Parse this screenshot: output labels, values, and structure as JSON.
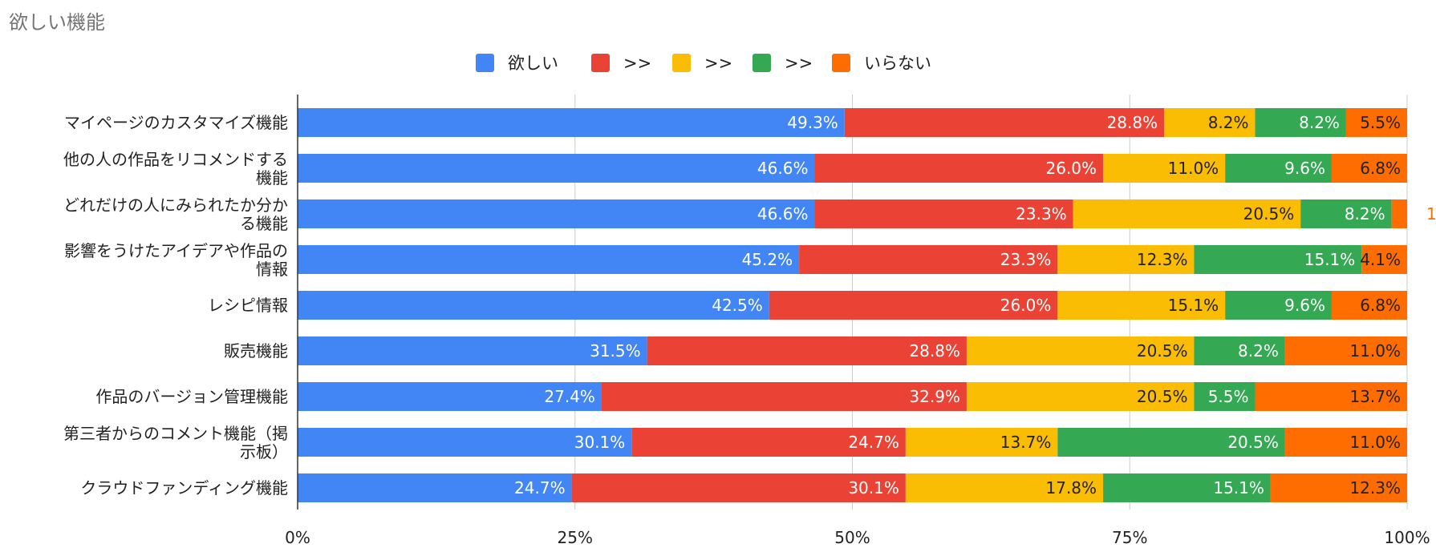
{
  "chart_data": {
    "type": "bar",
    "orientation": "horizontal",
    "stacked": "percent",
    "title": "欲しい機能",
    "xlabel": "",
    "ylabel": "",
    "xlim": [
      0,
      100
    ],
    "x_ticks": [
      "0%",
      "25%",
      "50%",
      "75%",
      "100%"
    ],
    "grid": true,
    "legend_position": "top",
    "categories": [
      [
        "マイページのカスタマイズ機能"
      ],
      [
        "他の人の作品をリコメンドする",
        "機能"
      ],
      [
        "どれだけの人にみられたか分か",
        "る機能"
      ],
      [
        "影響をうけたアイデアや作品の",
        "情報"
      ],
      [
        "レシピ情報"
      ],
      [
        "販売機能"
      ],
      [
        "作品のバージョン管理機能"
      ],
      [
        "第三者からのコメント機能（掲",
        "示板）"
      ],
      [
        "クラウドファンディング機能"
      ]
    ],
    "series": [
      {
        "name": "欲しい",
        "color": "#4285F4",
        "label_color": "#ffffff",
        "values": [
          49.3,
          46.6,
          46.6,
          45.2,
          42.5,
          31.5,
          27.4,
          30.1,
          24.7
        ],
        "labels": [
          "49.3%",
          "46.6%",
          "46.6%",
          "45.2%",
          "42.5%",
          "31.5%",
          "27.4%",
          "30.1%",
          "24.7%"
        ]
      },
      {
        "name": ">>",
        "color": "#EA4335",
        "label_color": "#ffffff",
        "values": [
          28.8,
          26.0,
          23.3,
          23.3,
          26.0,
          28.8,
          32.9,
          24.7,
          30.1
        ],
        "labels": [
          "28.8%",
          "26.0%",
          "23.3%",
          "23.3%",
          "26.0%",
          "28.8%",
          "32.9%",
          "24.7%",
          "30.1%"
        ]
      },
      {
        "name": ">>",
        "color": "#FBBC04",
        "label_color": "#222222",
        "values": [
          8.2,
          11.0,
          20.5,
          12.3,
          15.1,
          20.5,
          20.5,
          13.7,
          17.8
        ],
        "labels": [
          "8.2%",
          "11.0%",
          "20.5%",
          "12.3%",
          "15.1%",
          "20.5%",
          "20.5%",
          "13.7%",
          "17.8%"
        ]
      },
      {
        "name": ">>",
        "color": "#34A853",
        "label_color": "#ffffff",
        "values": [
          8.2,
          9.6,
          8.2,
          15.1,
          9.6,
          8.2,
          5.5,
          20.5,
          15.1
        ],
        "labels": [
          "8.2%",
          "9.6%",
          "8.2%",
          "15.1%",
          "9.6%",
          "8.2%",
          "5.5%",
          "20.5%",
          "15.1%"
        ]
      },
      {
        "name": "いらない",
        "color": "#FF6D01",
        "label_color": "#222222",
        "values": [
          5.5,
          6.8,
          1.4,
          4.1,
          6.8,
          11.0,
          13.7,
          11.0,
          12.3
        ],
        "labels": [
          "5.5%",
          "6.8%",
          "1",
          "4.1%",
          "6.8%",
          "11.0%",
          "13.7%",
          "11.0%",
          "12.3%"
        ]
      }
    ]
  }
}
